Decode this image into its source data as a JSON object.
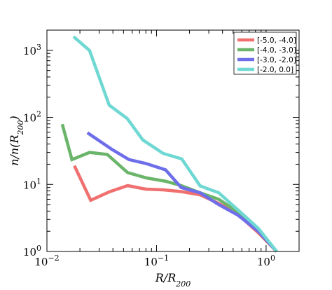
{
  "chart_data": {
    "type": "line",
    "xscale": "log",
    "yscale": "log",
    "xlim": [
      0.01,
      2.0
    ],
    "ylim": [
      1,
      2000
    ],
    "grid": false,
    "legend_position": "top-right",
    "x_ticks": [
      {
        "value": 0.01,
        "base": "10",
        "exp": "−2"
      },
      {
        "value": 0.1,
        "base": "10",
        "exp": "−1"
      },
      {
        "value": 1,
        "base": "10",
        "exp": "0"
      }
    ],
    "y_ticks": [
      {
        "value": 1,
        "base": "10",
        "exp": "0"
      },
      {
        "value": 10,
        "base": "10",
        "exp": "1"
      },
      {
        "value": 100,
        "base": "10",
        "exp": "2"
      },
      {
        "value": 1000,
        "base": "10",
        "exp": "3"
      }
    ],
    "xlabel": "R/R200",
    "ylabel": "n/n(R200)",
    "series": [
      {
        "name": "[-5.0, -4.0]",
        "color": "#f07070",
        "x": [
          0.0178,
          0.0251,
          0.0375,
          0.0545,
          0.0795,
          0.115,
          0.17,
          0.25,
          0.37,
          0.55,
          0.85,
          1.25
        ],
        "y": [
          19.0,
          5.8,
          7.8,
          9.6,
          8.5,
          8.3,
          7.8,
          7.0,
          5.2,
          3.6,
          1.9,
          1.0
        ]
      },
      {
        "name": "[-4.0, -3.0]",
        "color": "#6ab56a",
        "x": [
          0.0138,
          0.0169,
          0.0245,
          0.0355,
          0.0545,
          0.081,
          0.12,
          0.165,
          0.25,
          0.37,
          0.55,
          0.85,
          1.25
        ],
        "y": [
          79,
          23.5,
          30,
          28,
          15.0,
          12.5,
          11.2,
          9.7,
          7.5,
          6.0,
          3.9,
          2.0,
          1.0
        ]
      },
      {
        "name": "[-3.0, -2.0]",
        "color": "#6e6eea",
        "x": [
          0.0234,
          0.0395,
          0.056,
          0.08,
          0.121,
          0.168,
          0.25,
          0.37,
          0.55,
          0.85,
          1.25
        ],
        "y": [
          59,
          33,
          23.5,
          20.5,
          16.5,
          9.0,
          7.5,
          5.0,
          3.5,
          2.0,
          1.0
        ]
      },
      {
        "name": "[-2.0, 0.0]",
        "color": "#6fd8d2",
        "x": [
          0.0175,
          0.0245,
          0.037,
          0.054,
          0.075,
          0.115,
          0.17,
          0.25,
          0.37,
          0.55,
          0.85,
          1.25
        ],
        "y": [
          1600,
          990,
          152,
          96,
          46,
          29,
          24,
          9.5,
          7.5,
          4.2,
          2.2,
          1.0
        ]
      }
    ]
  }
}
